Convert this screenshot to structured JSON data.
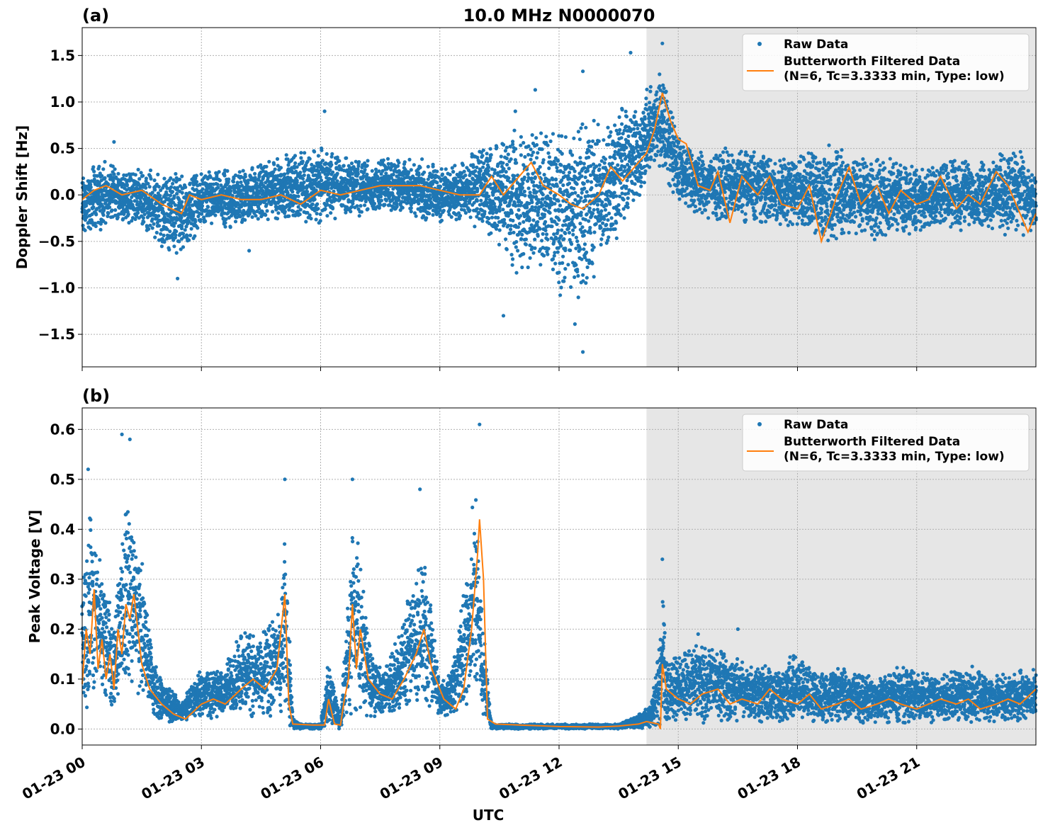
{
  "figure": {
    "title": "10.0 MHz N0000070",
    "xlabel": "UTC"
  },
  "style": {
    "raw_color": "#1f77b4",
    "filtered_color": "#ff7f0e",
    "shade_color": "#e6e6e6",
    "grid_color": "#b0b0b0"
  },
  "chart_data": [
    {
      "type": "scatter",
      "panel_label": "(a)",
      "ylabel": "Doppler Shift [Hz]",
      "x_unit": "hours UTC since 01-23 00",
      "xlim": [
        0,
        24
      ],
      "ylim": [
        -1.85,
        1.8
      ],
      "yticks": [
        -1.5,
        -1.0,
        -0.5,
        0.0,
        0.5,
        1.0,
        1.5
      ],
      "ytick_labels": [
        "−1.5",
        "−1.0",
        "−0.5",
        "0.0",
        "0.5",
        "1.0",
        "1.5"
      ],
      "xticks": [
        0,
        3,
        6,
        9,
        12,
        15,
        18,
        21
      ],
      "xtick_labels": [
        "01-23 00",
        "01-23 03",
        "01-23 06",
        "01-23 09",
        "01-23 12",
        "01-23 15",
        "01-23 18",
        "01-23 21"
      ],
      "grid": true,
      "shaded_region": [
        14.2,
        24
      ],
      "legend": {
        "position": "top-right",
        "entries": [
          "Raw Data",
          "Butterworth Filtered Data",
          "(N=6, Tc=3.3333 min, Type: low)"
        ]
      },
      "series": [
        {
          "name": "Raw Data",
          "kind": "scatter",
          "envelope": {
            "x": [
              0,
              0.5,
              1,
              1.5,
              2,
              2.5,
              3,
              3.5,
              4,
              4.5,
              5,
              5.5,
              6,
              6.5,
              7,
              7.5,
              8,
              8.5,
              9,
              9.5,
              10,
              10.5,
              11,
              11.5,
              12,
              12.5,
              13,
              13.5,
              14,
              14.3,
              14.6,
              15,
              15.5,
              16,
              16.5,
              17,
              17.5,
              18,
              18.5,
              19,
              19.5,
              20,
              20.5,
              21,
              21.5,
              22,
              22.5,
              23,
              23.5,
              24
            ],
            "low": [
              -0.5,
              -0.4,
              -0.3,
              -0.35,
              -0.6,
              -0.7,
              -0.35,
              -0.4,
              -0.35,
              -0.3,
              -0.3,
              -0.3,
              -0.35,
              -0.25,
              -0.25,
              -0.2,
              -0.2,
              -0.3,
              -0.3,
              -0.3,
              -0.4,
              -0.6,
              -0.9,
              -0.8,
              -1.1,
              -1.2,
              -0.9,
              -0.5,
              -0.1,
              0.2,
              0.2,
              -0.1,
              -0.25,
              -0.3,
              -0.3,
              -0.3,
              -0.35,
              -0.35,
              -0.5,
              -0.55,
              -0.45,
              -0.5,
              -0.45,
              -0.45,
              -0.4,
              -0.4,
              -0.35,
              -0.4,
              -0.5,
              -0.4
            ],
            "high": [
              0.25,
              0.4,
              0.3,
              0.3,
              0.25,
              0.3,
              0.25,
              0.3,
              0.3,
              0.35,
              0.45,
              0.5,
              0.55,
              0.45,
              0.4,
              0.4,
              0.4,
              0.4,
              0.35,
              0.35,
              0.55,
              0.6,
              0.8,
              0.7,
              0.8,
              0.9,
              0.95,
              1.0,
              1.0,
              1.2,
              1.4,
              0.7,
              0.5,
              0.5,
              0.55,
              0.5,
              0.4,
              0.45,
              0.5,
              0.6,
              0.45,
              0.4,
              0.4,
              0.35,
              0.4,
              0.45,
              0.35,
              0.45,
              0.55,
              0.2
            ]
          },
          "outliers": [
            [
              14.6,
              1.63
            ],
            [
              13.8,
              1.53
            ],
            [
              12.6,
              1.33
            ],
            [
              11.4,
              1.13
            ],
            [
              10.9,
              0.9
            ],
            [
              6.1,
              0.9
            ],
            [
              0.8,
              0.57
            ],
            [
              12.6,
              -1.69
            ],
            [
              12.4,
              -1.39
            ],
            [
              10.6,
              -1.3
            ],
            [
              2.4,
              -0.9
            ],
            [
              4.2,
              -0.6
            ]
          ]
        },
        {
          "name": "Butterworth Filtered Data",
          "kind": "line",
          "x": [
            0,
            0.3,
            0.6,
            1,
            1.5,
            2,
            2.5,
            2.7,
            3,
            3.5,
            4,
            4.5,
            5,
            5.5,
            6,
            6.5,
            7,
            7.5,
            8,
            8.5,
            9,
            9.5,
            10,
            10.3,
            10.6,
            11,
            11.3,
            11.6,
            12,
            12.3,
            12.6,
            13,
            13.3,
            13.6,
            13.9,
            14.2,
            14.4,
            14.6,
            14.8,
            15,
            15.2,
            15.5,
            15.8,
            16,
            16.3,
            16.6,
            17,
            17.3,
            17.6,
            18,
            18.3,
            18.6,
            19,
            19.3,
            19.6,
            20,
            20.3,
            20.6,
            21,
            21.3,
            21.6,
            22,
            22.3,
            22.6,
            23,
            23.3,
            23.6,
            23.8,
            24
          ],
          "y": [
            -0.05,
            0.05,
            0.1,
            0.0,
            0.05,
            -0.1,
            -0.2,
            0.0,
            -0.05,
            0.0,
            -0.05,
            -0.05,
            0.0,
            -0.1,
            0.05,
            0.0,
            0.05,
            0.1,
            0.1,
            0.1,
            0.05,
            0.0,
            0.0,
            0.2,
            0.0,
            0.2,
            0.35,
            0.1,
            0.0,
            -0.1,
            -0.15,
            0.0,
            0.3,
            0.15,
            0.3,
            0.45,
            0.7,
            1.1,
            0.8,
            0.6,
            0.55,
            0.1,
            0.05,
            0.25,
            -0.3,
            0.2,
            0.0,
            0.2,
            -0.1,
            -0.15,
            0.1,
            -0.5,
            0.0,
            0.3,
            -0.1,
            0.1,
            -0.2,
            0.05,
            -0.1,
            -0.05,
            0.2,
            -0.15,
            0.0,
            -0.1,
            0.25,
            0.1,
            -0.2,
            -0.4,
            -0.2
          ]
        }
      ]
    },
    {
      "type": "scatter",
      "panel_label": "(b)",
      "ylabel": "Peak Voltage [V]",
      "x_unit": "hours UTC since 01-23 00",
      "xlim": [
        0,
        24
      ],
      "ylim": [
        -0.032,
        0.643
      ],
      "yticks": [
        0.0,
        0.1,
        0.2,
        0.3,
        0.4,
        0.5,
        0.6
      ],
      "ytick_labels": [
        "0.0",
        "0.1",
        "0.2",
        "0.3",
        "0.4",
        "0.5",
        "0.6"
      ],
      "xticks": [
        0,
        3,
        6,
        9,
        12,
        15,
        18,
        21
      ],
      "xtick_labels": [
        "01-23 00",
        "01-23 03",
        "01-23 06",
        "01-23 09",
        "01-23 12",
        "01-23 15",
        "01-23 18",
        "01-23 21"
      ],
      "grid": true,
      "shaded_region": [
        14.2,
        24
      ],
      "legend": {
        "position": "top-right",
        "entries": [
          "Raw Data",
          "Butterworth Filtered Data",
          "(N=6, Tc=3.3333 min, Type: low)"
        ]
      },
      "series": [
        {
          "name": "Raw Data",
          "kind": "scatter",
          "envelope": {
            "x": [
              0,
              0.2,
              0.5,
              0.8,
              1,
              1.2,
              1.5,
              1.8,
              2,
              2.5,
              3,
              3.5,
              4,
              4.5,
              5,
              5.1,
              5.3,
              5.6,
              6,
              6.2,
              6.5,
              6.8,
              7,
              7.3,
              7.6,
              8,
              8.3,
              8.6,
              9,
              9.3,
              9.6,
              9.9,
              10.1,
              10.3,
              10.6,
              11,
              11.5,
              12,
              12.5,
              13,
              13.5,
              14,
              14.3,
              14.5,
              14.6,
              14.7,
              15,
              15.5,
              16,
              16.5,
              17,
              17.5,
              18,
              18.5,
              19,
              19.5,
              20,
              20.5,
              21,
              21.5,
              22,
              22.5,
              23,
              23.5,
              24
            ],
            "low": [
              0.03,
              0.04,
              0.05,
              0.04,
              0.06,
              0.05,
              0.04,
              0.02,
              0.01,
              0.01,
              0.02,
              0.02,
              0.02,
              0.02,
              0.02,
              0.01,
              0.0,
              0.0,
              0.0,
              0.0,
              0.0,
              0.02,
              0.03,
              0.02,
              0.02,
              0.03,
              0.03,
              0.04,
              0.02,
              0.02,
              0.03,
              0.05,
              0.02,
              0.0,
              0.0,
              0.0,
              0.0,
              0.0,
              0.0,
              0.0,
              0.0,
              0.0,
              0.0,
              0.0,
              0.02,
              0.01,
              0.01,
              0.01,
              0.01,
              0.01,
              0.01,
              0.01,
              0.01,
              0.01,
              0.01,
              0.01,
              0.01,
              0.01,
              0.01,
              0.01,
              0.01,
              0.01,
              0.01,
              0.01,
              0.02
            ],
            "high": [
              0.3,
              0.45,
              0.35,
              0.2,
              0.45,
              0.5,
              0.35,
              0.15,
              0.1,
              0.06,
              0.13,
              0.12,
              0.2,
              0.2,
              0.25,
              0.45,
              0.02,
              0.01,
              0.01,
              0.15,
              0.02,
              0.45,
              0.35,
              0.15,
              0.12,
              0.2,
              0.3,
              0.4,
              0.1,
              0.12,
              0.3,
              0.5,
              0.2,
              0.01,
              0.01,
              0.01,
              0.01,
              0.01,
              0.01,
              0.01,
              0.01,
              0.03,
              0.05,
              0.15,
              0.3,
              0.15,
              0.15,
              0.18,
              0.17,
              0.15,
              0.14,
              0.12,
              0.16,
              0.12,
              0.13,
              0.12,
              0.1,
              0.13,
              0.12,
              0.11,
              0.12,
              0.13,
              0.11,
              0.12,
              0.12
            ]
          },
          "outliers": [
            [
              10.0,
              0.61
            ],
            [
              1.0,
              0.59
            ],
            [
              1.2,
              0.58
            ],
            [
              0.15,
              0.52
            ],
            [
              6.8,
              0.5
            ],
            [
              5.1,
              0.5
            ],
            [
              8.5,
              0.48
            ],
            [
              14.6,
              0.34
            ],
            [
              16.5,
              0.2
            ],
            [
              15.5,
              0.19
            ]
          ]
        },
        {
          "name": "Butterworth Filtered Data",
          "kind": "line",
          "x": [
            0,
            0.1,
            0.2,
            0.3,
            0.4,
            0.5,
            0.6,
            0.7,
            0.8,
            0.9,
            1,
            1.1,
            1.2,
            1.3,
            1.4,
            1.5,
            1.7,
            2,
            2.3,
            2.6,
            3,
            3.3,
            3.6,
            4,
            4.3,
            4.6,
            4.9,
            5.1,
            5.2,
            5.3,
            5.8,
            6.1,
            6.2,
            6.35,
            6.5,
            6.6,
            6.7,
            6.8,
            6.9,
            7.0,
            7.2,
            7.5,
            7.8,
            8.1,
            8.4,
            8.6,
            8.8,
            9.1,
            9.4,
            9.6,
            9.8,
            9.95,
            10.0,
            10.1,
            10.2,
            10.4,
            11,
            12,
            13,
            13.5,
            14,
            14.2,
            14.5,
            14.55,
            14.6,
            14.7,
            15,
            15.3,
            15.6,
            16,
            16.3,
            16.6,
            17,
            17.3,
            17.6,
            18,
            18.3,
            18.6,
            19,
            19.3,
            19.6,
            20,
            20.3,
            20.6,
            21,
            21.3,
            21.6,
            22,
            22.3,
            22.6,
            23,
            23.3,
            23.6,
            24
          ],
          "y": [
            0.09,
            0.2,
            0.15,
            0.28,
            0.12,
            0.18,
            0.1,
            0.15,
            0.08,
            0.2,
            0.15,
            0.25,
            0.22,
            0.27,
            0.2,
            0.13,
            0.08,
            0.05,
            0.03,
            0.02,
            0.05,
            0.06,
            0.05,
            0.08,
            0.1,
            0.08,
            0.12,
            0.27,
            0.05,
            0.01,
            0.008,
            0.008,
            0.06,
            0.01,
            0.008,
            0.06,
            0.1,
            0.25,
            0.12,
            0.2,
            0.1,
            0.07,
            0.06,
            0.1,
            0.15,
            0.2,
            0.12,
            0.06,
            0.04,
            0.08,
            0.2,
            0.35,
            0.42,
            0.3,
            0.02,
            0.01,
            0.008,
            0.005,
            0.004,
            0.006,
            0.01,
            0.015,
            0.01,
            0.0,
            0.13,
            0.08,
            0.06,
            0.05,
            0.07,
            0.08,
            0.05,
            0.06,
            0.05,
            0.08,
            0.06,
            0.05,
            0.07,
            0.04,
            0.05,
            0.06,
            0.04,
            0.05,
            0.06,
            0.05,
            0.04,
            0.05,
            0.06,
            0.05,
            0.06,
            0.04,
            0.05,
            0.06,
            0.05,
            0.08
          ]
        }
      ]
    }
  ]
}
